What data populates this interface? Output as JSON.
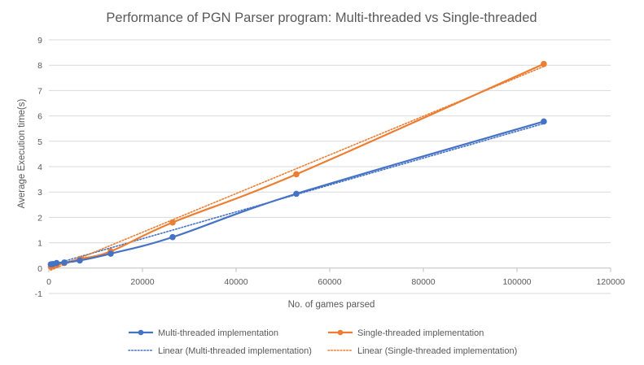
{
  "chart_data": {
    "type": "line",
    "title": "Performance of PGN Parser program: Multi-threaded vs Single-threaded",
    "xlabel": "No. of games parsed",
    "ylabel": "Average Execution time(s)",
    "xlim": [
      0,
      120000
    ],
    "ylim": [
      -1,
      9
    ],
    "x_ticks": [
      0,
      20000,
      40000,
      60000,
      80000,
      100000,
      120000
    ],
    "y_ticks": [
      -1,
      0,
      1,
      2,
      3,
      4,
      5,
      6,
      7,
      8,
      9
    ],
    "grid": "horizontal",
    "legend_position": "bottom",
    "series": [
      {
        "name": "Multi-threaded implementation",
        "color": "#4472C4",
        "x": [
          413,
          826,
          1652,
          3304,
          6608,
          13216,
          26432,
          52864,
          105728
        ],
        "y": [
          0.15,
          0.16,
          0.2,
          0.22,
          0.3,
          0.57,
          1.22,
          2.93,
          5.78
        ]
      },
      {
        "name": "Single-threaded implementation",
        "color": "#ED7D31",
        "x": [
          413,
          826,
          1652,
          3304,
          6608,
          13216,
          26432,
          52864,
          105728
        ],
        "y": [
          0.05,
          0.08,
          0.12,
          0.2,
          0.36,
          0.66,
          1.8,
          3.7,
          8.05
        ]
      }
    ],
    "trendlines": [
      {
        "name": "Linear (Multi-threaded implementation)",
        "color": "#4472C4",
        "x": [
          413,
          105728
        ],
        "y": [
          0.12,
          5.7
        ]
      },
      {
        "name": "Linear (Single-threaded implementation)",
        "color": "#ED7D31",
        "x": [
          413,
          105728
        ],
        "y": [
          -0.08,
          7.95
        ]
      }
    ]
  }
}
